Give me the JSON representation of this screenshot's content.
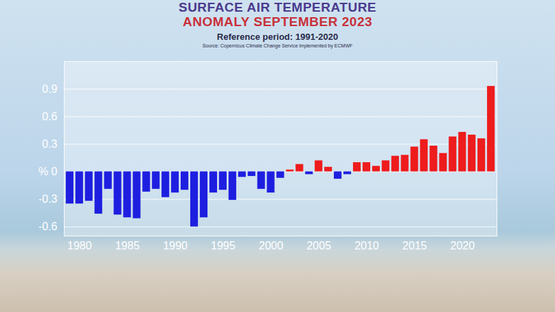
{
  "chart_data": {
    "type": "bar",
    "title": "SURFACE AIR TEMPERATURE\nANOMALY SEPTEMBER 2023",
    "subtitle": "Reference period: 1991-2020",
    "caption": "Source: Copernicus Climate Change Service implemented by ECMWF",
    "categories": [
      1979,
      1980,
      1981,
      1982,
      1983,
      1984,
      1985,
      1986,
      1987,
      1988,
      1989,
      1990,
      1991,
      1992,
      1993,
      1994,
      1995,
      1996,
      1997,
      1998,
      1999,
      2000,
      2001,
      2002,
      2003,
      2004,
      2005,
      2006,
      2007,
      2008,
      2009,
      2010,
      2011,
      2012,
      2013,
      2014,
      2015,
      2016,
      2017,
      2018,
      2019,
      2020,
      2021,
      2022,
      2023
    ],
    "values": [
      -0.35,
      -0.35,
      -0.32,
      -0.46,
      -0.19,
      -0.47,
      -0.5,
      -0.51,
      -0.22,
      -0.19,
      -0.28,
      -0.23,
      -0.2,
      -0.6,
      -0.5,
      -0.23,
      -0.2,
      -0.31,
      -0.06,
      -0.05,
      -0.19,
      -0.23,
      -0.07,
      0.02,
      0.08,
      -0.03,
      0.12,
      0.05,
      -0.08,
      -0.03,
      0.1,
      0.1,
      0.06,
      0.12,
      0.17,
      0.18,
      0.27,
      0.35,
      0.28,
      0.2,
      0.38,
      0.43,
      0.4,
      0.36,
      0.93
    ],
    "colors": [
      "#1e1ee0",
      "#1e1ee0",
      "#1e1ee0",
      "#1e1ee0",
      "#1e1ee0",
      "#1e1ee0",
      "#1e1ee0",
      "#1e1ee0",
      "#1e1ee0",
      "#1e1ee0",
      "#1e1ee0",
      "#1e1ee0",
      "#1e1ee0",
      "#1e1ee0",
      "#1e1ee0",
      "#1e1ee0",
      "#1e1ee0",
      "#1e1ee0",
      "#1e1ee0",
      "#1e1ee0",
      "#1e1ee0",
      "#1e1ee0",
      "#1e1ee0",
      "#ee1c1c",
      "#ee1c1c",
      "#1e1ee0",
      "#ee1c1c",
      "#ee1c1c",
      "#1e1ee0",
      "#1e1ee0",
      "#ee1c1c",
      "#ee1c1c",
      "#ee1c1c",
      "#ee1c1c",
      "#ee1c1c",
      "#ee1c1c",
      "#ee1c1c",
      "#ee1c1c",
      "#ee1c1c",
      "#ee1c1c",
      "#ee1c1c",
      "#ee1c1c",
      "#ee1c1c",
      "#ee1c1c",
      "#ee1c1c"
    ],
    "xticks": [
      1980,
      1985,
      1990,
      1995,
      2000,
      2005,
      2010,
      2015,
      2020
    ],
    "ylim": [
      -0.7,
      1.2
    ],
    "yticks": [
      -0.6,
      -0.3,
      {
        "value": 0,
        "label": "% 0"
      },
      0.3,
      0.6,
      0.9
    ],
    "grid": true
  }
}
